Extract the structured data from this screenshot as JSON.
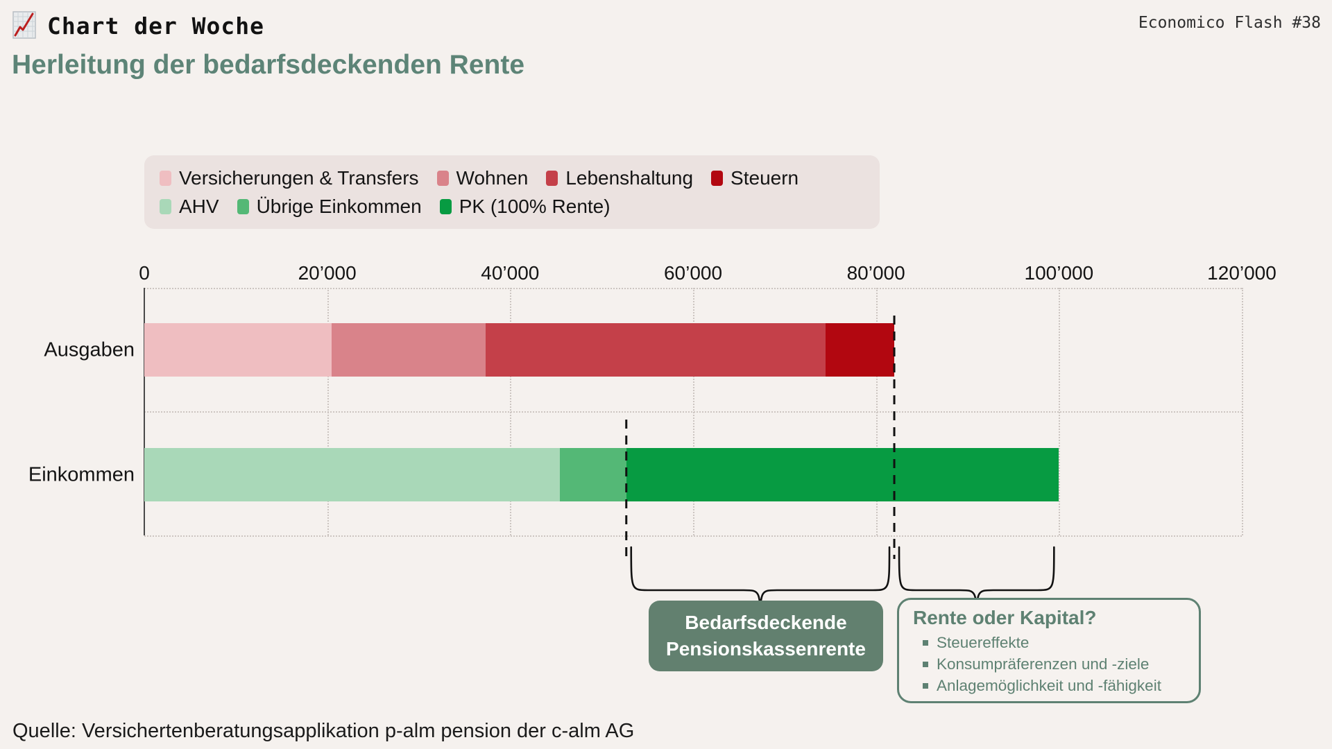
{
  "header": {
    "brand": "Chart der Woche",
    "issue": "Economico Flash #38"
  },
  "title": "Herleitung der bedarfsdeckenden Rente",
  "legend": {
    "rows": [
      [
        {
          "label": "Versicherungen & Transfers",
          "color": "#efbec1"
        },
        {
          "label": "Wohnen",
          "color": "#d9838a"
        },
        {
          "label": "Lebenshaltung",
          "color": "#c44049"
        },
        {
          "label": "Steuern",
          "color": "#b20710"
        }
      ],
      [
        {
          "label": "AHV",
          "color": "#a9d8b8"
        },
        {
          "label": "Übrige Einkommen",
          "color": "#54b876"
        },
        {
          "label": "PK (100% Rente)",
          "color": "#079b42"
        }
      ]
    ]
  },
  "chart_data": {
    "type": "bar",
    "orientation": "horizontal",
    "stacked": true,
    "title": "Herleitung der bedarfsdeckenden Rente",
    "xlabel": "",
    "ylabel": "",
    "xlim": [
      0,
      120000
    ],
    "grid": true,
    "legend_position": "top",
    "xticks": [
      {
        "value": 0,
        "label": "0"
      },
      {
        "value": 20000,
        "label": "20’000"
      },
      {
        "value": 40000,
        "label": "40’000"
      },
      {
        "value": 60000,
        "label": "60’000"
      },
      {
        "value": 80000,
        "label": "80’000"
      },
      {
        "value": 100000,
        "label": "100’000"
      },
      {
        "value": 120000,
        "label": "120’000"
      }
    ],
    "categories": [
      "Ausgaben",
      "Einkommen"
    ],
    "rows": [
      {
        "category": "Ausgaben",
        "total": 82000,
        "segments": [
          {
            "name": "Versicherungen & Transfers",
            "value": 20500,
            "color": "#efbec1"
          },
          {
            "name": "Wohnen",
            "value": 16800,
            "color": "#d9838a"
          },
          {
            "name": "Lebenshaltung",
            "value": 37200,
            "color": "#c44049"
          },
          {
            "name": "Steuern",
            "value": 7500,
            "color": "#b20710"
          }
        ]
      },
      {
        "category": "Einkommen",
        "total": 100000,
        "segments": [
          {
            "name": "AHV",
            "value": 45400,
            "color": "#a9d8b8"
          },
          {
            "name": "Übrige Einkommen",
            "value": 7300,
            "color": "#54b876"
          },
          {
            "name": "PK (100% Rente)",
            "value": 47300,
            "color": "#079b42"
          }
        ]
      }
    ],
    "annotations": {
      "dashed_lines": [
        {
          "x": 52700
        },
        {
          "x": 82000
        }
      ],
      "braces": [
        {
          "from": 52700,
          "to": 82000,
          "label": "Bedarfsdeckende Pensionskassenrente"
        },
        {
          "from": 82000,
          "to": 100000,
          "label": "Rente oder Kapital?"
        }
      ]
    }
  },
  "badge": {
    "line1": "Bedarfsdeckende",
    "line2": "Pensionskassenrente",
    "bg": "#62806f"
  },
  "callout": {
    "title": "Rente oder Kapital?",
    "bullets": [
      "Steuereffekte",
      "Konsumpräferenzen und -ziele",
      "Anlagemöglichkeit und -fähigkeit"
    ],
    "accent": "#5e8172"
  },
  "source": "Quelle: Versichertenberatungsapplikation p-alm pension der c-alm AG"
}
